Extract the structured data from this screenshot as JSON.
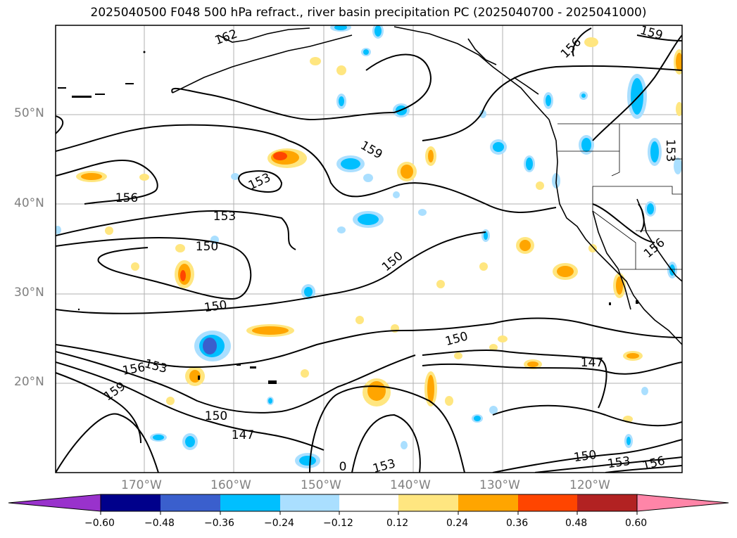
{
  "title": "2025040500 F048 500 hPa refract., river basin precipitation PC (2025040700 - 2025041000)",
  "map": {
    "lat_labels": [
      "50°N",
      "40°N",
      "30°N",
      "20°N"
    ],
    "lon_labels": [
      "170°W",
      "160°W",
      "150°W",
      "140°W",
      "130°W",
      "120°W"
    ],
    "lon_range": [
      -178,
      -108
    ],
    "lat_range": [
      10,
      60
    ],
    "contour_labels": [
      "162",
      "156",
      "159",
      "159",
      "153",
      "156",
      "153",
      "150",
      "150",
      "150",
      "150",
      "147",
      "156",
      "153",
      "159",
      "153",
      "150",
      "147",
      "0",
      "153",
      "150",
      "153",
      "156",
      "156",
      "153"
    ],
    "colors": {
      "land_line": "#000000",
      "grid": "#b0b0b0",
      "pos1": "#ffe680",
      "pos2": "#ffa500",
      "pos3": "#ff4500",
      "neg1": "#aadfff",
      "neg2": "#00bfff",
      "neg3": "#3a5fcd"
    }
  },
  "colorbar": {
    "ticks": [
      "−0.60",
      "−0.48",
      "−0.36",
      "−0.24",
      "−0.12",
      "0.12",
      "0.24",
      "0.36",
      "0.48",
      "0.60"
    ],
    "colors": [
      "#9932cc",
      "#00008b",
      "#3a5fcd",
      "#00bfff",
      "#aadfff",
      "#ffffff",
      "#ffe680",
      "#ffa500",
      "#ff4500",
      "#b22222",
      "#ff85a8"
    ]
  }
}
